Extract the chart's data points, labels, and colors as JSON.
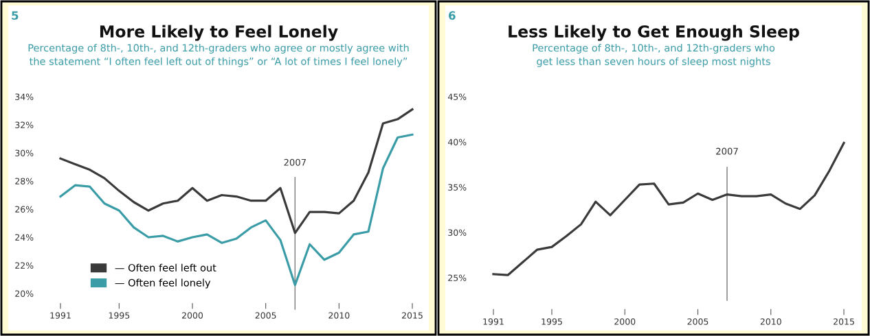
{
  "chart_data": [
    {
      "type": "line",
      "title": "More Likely to Feel Lonely",
      "subtitle": "Percentage of 8th-, 10th-, and 12th-graders who agree or mostly agree with\nthe statement “I often feel left out of things” or “A lot of times I feel lonely”",
      "annotations": [
        "5"
      ],
      "x": [
        1991,
        1992,
        1993,
        1994,
        1995,
        1996,
        1997,
        1998,
        1999,
        2000,
        2001,
        2002,
        2003,
        2004,
        2005,
        2006,
        2007,
        2008,
        2009,
        2010,
        2011,
        2012,
        2013,
        2014,
        2015
      ],
      "series": [
        {
          "name": "— Often feel left out",
          "color": "#3a3a3a",
          "values": [
            29.6,
            29.2,
            28.8,
            28.2,
            27.3,
            26.5,
            25.9,
            26.4,
            26.6,
            27.5,
            26.6,
            27.0,
            26.9,
            26.6,
            26.6,
            27.5,
            24.3,
            25.8,
            25.8,
            25.7,
            26.6,
            28.6,
            32.1,
            32.4,
            33.1
          ]
        },
        {
          "name": "— Often feel lonely",
          "color": "#3a9ca6",
          "values": [
            26.9,
            27.7,
            27.6,
            26.4,
            25.9,
            24.7,
            24.0,
            24.1,
            23.7,
            24.0,
            24.2,
            23.6,
            23.9,
            24.7,
            25.2,
            23.8,
            20.6,
            23.5,
            22.4,
            22.9,
            24.2,
            24.4,
            28.9,
            31.1,
            31.3
          ]
        }
      ],
      "xlim": [
        1991,
        2015
      ],
      "ylim": [
        20,
        34
      ],
      "xticks": [
        1991,
        1995,
        2000,
        2005,
        2010,
        2015
      ],
      "yticks": [
        {
          "value": 20,
          "label": "20%"
        },
        {
          "value": 22,
          "label": "22%"
        },
        {
          "value": 24,
          "label": "24%"
        },
        {
          "value": 26,
          "label": "26%"
        },
        {
          "value": 28,
          "label": "28%"
        },
        {
          "value": 30,
          "label": "30%"
        },
        {
          "value": 32,
          "label": "32%"
        },
        {
          "value": 34,
          "label": "34%"
        }
      ],
      "ref_lines": [
        {
          "axis": "x",
          "value": 2007,
          "label": "2007",
          "color": "#777777"
        }
      ],
      "legend": "bottom left",
      "grid": false,
      "marker": "none",
      "line_style": "solid"
    },
    {
      "type": "line",
      "title": "Less Likely to Get Enough Sleep",
      "subtitle": "Percentage of 8th-, 10th-, and 12th-graders who\nget less than seven hours of sleep most nights",
      "annotations": [
        "6"
      ],
      "x": [
        1991,
        1992,
        1993,
        1994,
        1995,
        1996,
        1997,
        1998,
        1999,
        2000,
        2001,
        2002,
        2003,
        2004,
        2005,
        2006,
        2007,
        2008,
        2009,
        2010,
        2011,
        2012,
        2013,
        2014,
        2015
      ],
      "series": [
        {
          "color": "#3a3a3a",
          "values": [
            25.4,
            25.3,
            26.7,
            28.1,
            28.4,
            29.6,
            30.9,
            33.4,
            31.9,
            33.6,
            35.3,
            35.4,
            33.1,
            33.3,
            34.3,
            33.6,
            34.2,
            34.0,
            34.0,
            34.2,
            33.2,
            32.6,
            34.1,
            36.8,
            39.9
          ]
        }
      ],
      "xlim": [
        1991,
        2015
      ],
      "ylim": [
        25,
        45
      ],
      "xticks": [
        1991,
        1995,
        2000,
        2005,
        2010,
        2015
      ],
      "yticks": [
        {
          "value": 25,
          "label": "25%"
        },
        {
          "value": 30,
          "label": "30%"
        },
        {
          "value": 35,
          "label": "35%"
        },
        {
          "value": 40,
          "label": "40%"
        },
        {
          "value": 45,
          "label": "45%"
        }
      ],
      "ref_lines": [
        {
          "axis": "x",
          "value": 2007,
          "label": "2007",
          "color": "#777777"
        }
      ],
      "grid": false,
      "marker": "none",
      "line_style": "solid"
    }
  ]
}
